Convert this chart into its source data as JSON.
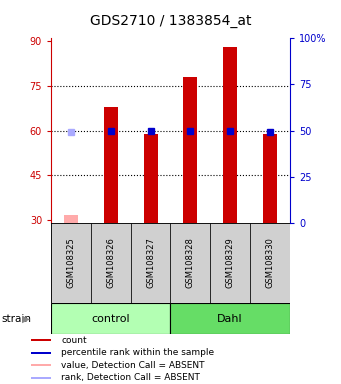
{
  "title": "GDS2710 / 1383854_at",
  "samples": [
    "GSM108325",
    "GSM108326",
    "GSM108327",
    "GSM108328",
    "GSM108329",
    "GSM108330"
  ],
  "bar_values": [
    31.5,
    68.0,
    59.0,
    78.0,
    88.0,
    59.0
  ],
  "bar_absent": [
    true,
    false,
    false,
    false,
    false,
    false
  ],
  "rank_values": [
    49.0,
    50.0,
    50.0,
    50.0,
    50.0,
    49.0
  ],
  "rank_absent": [
    true,
    false,
    false,
    false,
    false,
    false
  ],
  "ylim_left": [
    29,
    91
  ],
  "ylim_right": [
    0,
    100
  ],
  "yticks_left": [
    30,
    45,
    60,
    75,
    90
  ],
  "yticks_right": [
    0,
    25,
    50,
    75,
    100
  ],
  "ytick_right_labels": [
    "0",
    "25",
    "50",
    "75",
    "100%"
  ],
  "groups": [
    {
      "label": "control",
      "start": 0,
      "end": 3,
      "color": "#b3ffb3"
    },
    {
      "label": "Dahl",
      "start": 3,
      "end": 6,
      "color": "#66dd66"
    }
  ],
  "bar_color": "#cc0000",
  "bar_absent_color": "#ffaaaa",
  "rank_color": "#0000cc",
  "rank_absent_color": "#aaaaff",
  "left_axis_color": "#cc0000",
  "right_axis_color": "#0000cc",
  "bar_width": 0.35,
  "legend_items": [
    {
      "label": "count",
      "color": "#cc0000"
    },
    {
      "label": "percentile rank within the sample",
      "color": "#0000cc"
    },
    {
      "label": "value, Detection Call = ABSENT",
      "color": "#ffaaaa"
    },
    {
      "label": "rank, Detection Call = ABSENT",
      "color": "#aaaaff"
    }
  ]
}
